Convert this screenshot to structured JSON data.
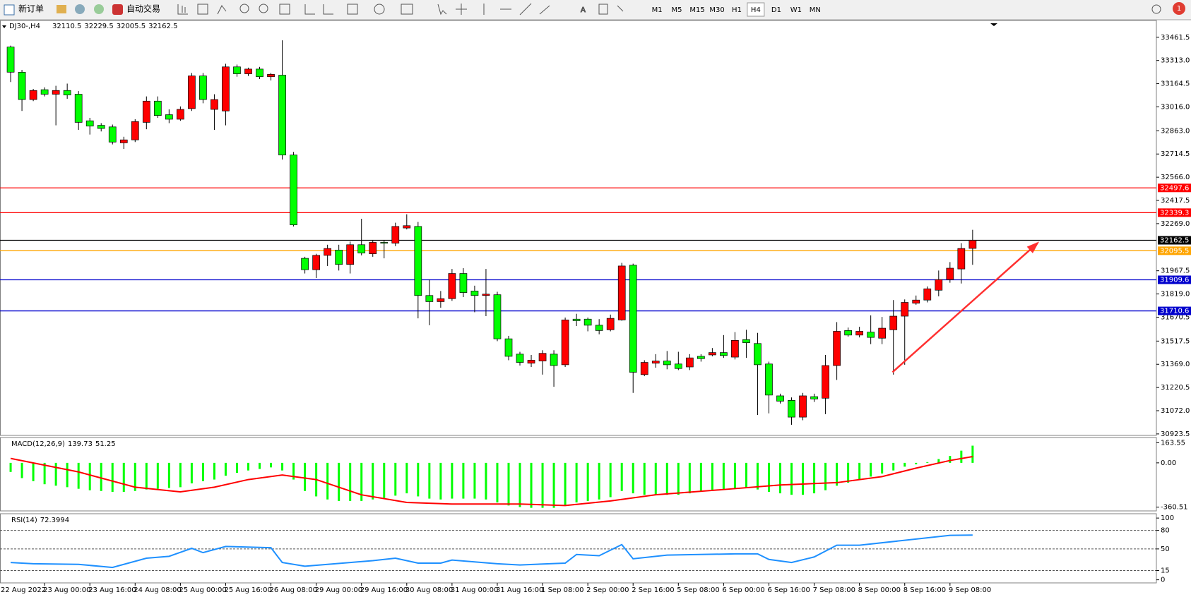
{
  "toolbar": {
    "new_order": "新订单",
    "auto_trading": "自动交易",
    "timeframes": [
      "M1",
      "M5",
      "M15",
      "M30",
      "H1",
      "H4",
      "D1",
      "W1",
      "MN"
    ],
    "active_timeframe": "H4",
    "notifications": "1"
  },
  "chart_data": [
    {
      "type": "candlestick",
      "symbol": "DJ30-,H4",
      "start_label": "22 Aug 2022",
      "categories": [
        null,
        null,
        null,
        "23 Aug 00:00",
        null,
        null,
        null,
        "23 Aug 16:00",
        null,
        null,
        null,
        "24 Aug 08:00",
        null,
        null,
        null,
        "25 Aug 00:00",
        null,
        null,
        null,
        "25 Aug 16:00",
        null,
        null,
        null,
        "26 Aug 08:00",
        null,
        null,
        null,
        "29 Aug 00:00",
        null,
        null,
        null,
        "29 Aug 16:00",
        null,
        null,
        null,
        "30 Aug 08:00",
        null,
        null,
        null,
        "31 Aug 00:00",
        null,
        null,
        null,
        "31 Aug 16:00",
        null,
        null,
        null,
        "1 Sep 08:00",
        null,
        null,
        null,
        "2 Sep 00:00",
        null,
        null,
        null,
        "2 Sep 16:00",
        null,
        null,
        null,
        "5 Sep 08:00",
        null,
        null,
        null,
        "6 Sep 00:00",
        null,
        null,
        null,
        "6 Sep 16:00",
        null,
        null,
        null,
        "7 Sep 08:00",
        null,
        null,
        null,
        "8 Sep 00:00",
        null,
        null,
        null,
        "8 Sep 16:00",
        null,
        null,
        null,
        "9 Sep 08:00",
        null,
        null
      ],
      "ohlc": [
        [
          33399,
          33408,
          33175,
          33238
        ],
        [
          33238,
          33253,
          32990,
          33063
        ],
        [
          33063,
          33131,
          33053,
          33121
        ],
        [
          33126,
          33141,
          33083,
          33097
        ],
        [
          33097,
          33151,
          32898,
          33121
        ],
        [
          33121,
          33165,
          33068,
          33092
        ],
        [
          33097,
          33117,
          32869,
          32917
        ],
        [
          32927,
          32946,
          32839,
          32893
        ],
        [
          32898,
          32912,
          32859,
          32878
        ],
        [
          32888,
          32903,
          32776,
          32791
        ],
        [
          32786,
          32825,
          32747,
          32805
        ],
        [
          32805,
          32937,
          32791,
          32922
        ],
        [
          32917,
          33083,
          32873,
          33053
        ],
        [
          33053,
          33083,
          32946,
          32961
        ],
        [
          32966,
          33000,
          32912,
          32937
        ],
        [
          32937,
          33019,
          32927,
          33000
        ],
        [
          33005,
          33233,
          32990,
          33214
        ],
        [
          33214,
          33233,
          33039,
          33063
        ],
        [
          33000,
          33097,
          32869,
          33063
        ],
        [
          32990,
          33292,
          32898,
          33272
        ],
        [
          33272,
          33287,
          33209,
          33228
        ],
        [
          33228,
          33267,
          33214,
          33258
        ],
        [
          33258,
          33272,
          33194,
          33209
        ],
        [
          33209,
          33233,
          33185,
          33224
        ],
        [
          33219,
          33442,
          32679,
          32708
        ],
        [
          32708,
          32728,
          32251,
          32261
        ],
        [
          32047,
          32057,
          31950,
          31974
        ],
        [
          31974,
          32076,
          31921,
          32066
        ],
        [
          32066,
          32134,
          31998,
          32110
        ],
        [
          32100,
          32134,
          31969,
          32008
        ],
        [
          32008,
          32154,
          31950,
          32134
        ],
        [
          32134,
          32300,
          32066,
          32081
        ],
        [
          32076,
          32164,
          32057,
          32149
        ],
        [
          32149,
          32164,
          32047,
          32144
        ],
        [
          32144,
          32275,
          32125,
          32251
        ],
        [
          32241,
          32329,
          32232,
          32256
        ],
        [
          32251,
          32280,
          31663,
          31809
        ],
        [
          31809,
          31911,
          31619,
          31770
        ],
        [
          31770,
          31838,
          31731,
          31789
        ],
        [
          31789,
          31979,
          31775,
          31950
        ],
        [
          31950,
          31984,
          31799,
          31828
        ],
        [
          31838,
          31872,
          31702,
          31809
        ],
        [
          31809,
          31979,
          31677,
          31818
        ],
        [
          31814,
          31833,
          31517,
          31532
        ],
        [
          31532,
          31551,
          31395,
          31420
        ],
        [
          31434,
          31449,
          31361,
          31381
        ],
        [
          31376,
          31429,
          31352,
          31395
        ],
        [
          31390,
          31459,
          31303,
          31439
        ],
        [
          31434,
          31459,
          31225,
          31361
        ],
        [
          31366,
          31668,
          31352,
          31653
        ],
        [
          31658,
          31692,
          31614,
          31648
        ],
        [
          31658,
          31668,
          31580,
          31619
        ],
        [
          31619,
          31658,
          31561,
          31585
        ],
        [
          31590,
          31687,
          31580,
          31663
        ],
        [
          31653,
          32018,
          31648,
          31998
        ],
        [
          32003,
          32013,
          31186,
          31318
        ],
        [
          31303,
          31395,
          31293,
          31381
        ],
        [
          31376,
          31434,
          31347,
          31390
        ],
        [
          31390,
          31454,
          31337,
          31366
        ],
        [
          31371,
          31449,
          31332,
          31342
        ],
        [
          31352,
          31434,
          31332,
          31410
        ],
        [
          31420,
          31434,
          31386,
          31405
        ],
        [
          31429,
          31473,
          31420,
          31444
        ],
        [
          31444,
          31556,
          31410,
          31425
        ],
        [
          31415,
          31575,
          31400,
          31522
        ],
        [
          31527,
          31590,
          31410,
          31507
        ],
        [
          31502,
          31570,
          31045,
          31366
        ],
        [
          31371,
          31386,
          31055,
          31172
        ],
        [
          31167,
          31181,
          31118,
          31133
        ],
        [
          31138,
          31157,
          30982,
          31031
        ],
        [
          31031,
          31186,
          31011,
          31167
        ],
        [
          31162,
          31181,
          31128,
          31147
        ],
        [
          31152,
          31429,
          31050,
          31361
        ],
        [
          31361,
          31639,
          31269,
          31580
        ],
        [
          31585,
          31604,
          31546,
          31556
        ],
        [
          31556,
          31609,
          31541,
          31580
        ],
        [
          31575,
          31682,
          31498,
          31541
        ],
        [
          31536,
          31672,
          31498,
          31600
        ],
        [
          31590,
          31780,
          31303,
          31677
        ],
        [
          31677,
          31784,
          31366,
          31765
        ],
        [
          31760,
          31809,
          31750,
          31780
        ],
        [
          31780,
          31867,
          31765,
          31852
        ],
        [
          31843,
          31969,
          31804,
          31911
        ],
        [
          31911,
          32023,
          31891,
          31984
        ],
        [
          31979,
          32144,
          31886,
          32110
        ],
        [
          32110.5,
          32229.5,
          32005.5,
          32162.5
        ]
      ],
      "up_color": "#ff0000",
      "down_color": "#00ff00",
      "ylim": [
        30914,
        33569
      ],
      "yticks": [
        33461.5,
        {
          "value": 33313,
          "label": "33313.0"
        },
        33164.5,
        {
          "value": 33016,
          "label": "33016.0"
        },
        {
          "value": 32863,
          "label": "32863.0"
        },
        32714.5,
        {
          "value": 32566,
          "label": "32566.0"
        },
        32417.5,
        {
          "value": 32269,
          "label": "32269.0"
        },
        31967.5,
        {
          "value": 31819,
          "label": "31819.0"
        },
        31670.5,
        31517.5,
        {
          "value": 31369,
          "label": "31369.0"
        },
        31220.5,
        {
          "value": 31072,
          "label": "31072.0"
        },
        30923.5
      ],
      "levels": [
        {
          "value": 32497.6,
          "color": "#ff0000"
        },
        {
          "value": 32339.3,
          "color": "#ff0000"
        },
        {
          "value": 32162.5,
          "color": "#000000"
        },
        {
          "value": 32095.5,
          "color": "#ffa500"
        },
        {
          "value": 31909.6,
          "color": "#0000cd"
        },
        {
          "value": 31710.6,
          "color": "#0000cd"
        }
      ]
    },
    {
      "type": "macd",
      "title": "MACD(12,26,9)",
      "histogram": {
        "color": "#00ff00",
        "values": [
          -74,
          -124,
          -149,
          -174,
          -186,
          -198,
          -211,
          -223,
          -229,
          -236,
          -236,
          -229,
          -217,
          -211,
          -205,
          -198,
          -167,
          -149,
          -136,
          -105,
          -81,
          -62,
          -50,
          -37,
          -62,
          -136,
          -229,
          -273,
          -298,
          -310,
          -310,
          -310,
          -298,
          -285,
          -267,
          -248,
          -273,
          -291,
          -298,
          -291,
          -291,
          -291,
          -298,
          -322,
          -347,
          -360,
          -366,
          -366,
          -366,
          -347,
          -322,
          -310,
          -298,
          -279,
          -229,
          -248,
          -260,
          -260,
          -260,
          -260,
          -248,
          -236,
          -223,
          -217,
          -211,
          -205,
          -217,
          -236,
          -248,
          -260,
          -260,
          -248,
          -223,
          -186,
          -161,
          -136,
          -112,
          -87,
          -62,
          -31,
          -12,
          6,
          31,
          56,
          99,
          139.73
        ]
      },
      "signal": {
        "color": "#ff0000",
        "x": [
          0,
          6,
          11,
          15,
          18,
          21,
          24,
          27,
          31,
          35,
          39,
          45,
          49,
          53,
          57,
          63,
          68,
          73,
          77,
          80,
          83,
          85
        ],
        "values": [
          36,
          -74,
          -198,
          -236,
          -198,
          -136,
          -99,
          -136,
          -260,
          -322,
          -335,
          -335,
          -347,
          -310,
          -260,
          -217,
          -180,
          -161,
          -112,
          -43,
          19,
          51.25
        ]
      },
      "ylim": [
        -391,
        206
      ],
      "yticks": [
        163.55,
        {
          "value": 0,
          "label": "0.00"
        },
        -360.51
      ]
    },
    {
      "type": "line",
      "title": "RSI(14)",
      "color": "#1e90ff",
      "x": [
        0,
        2,
        6,
        9,
        12,
        14,
        16,
        17,
        19,
        23,
        24,
        26,
        28,
        30,
        32,
        34,
        36,
        38,
        39,
        43,
        45,
        49,
        50,
        52,
        54,
        55,
        58,
        64,
        66,
        67,
        69,
        71,
        73,
        75,
        79,
        83,
        85
      ],
      "values": [
        28,
        26,
        25,
        20,
        35,
        38,
        51,
        44,
        54,
        52,
        28,
        22,
        25,
        28,
        31,
        35,
        27,
        27,
        32,
        26,
        24,
        27,
        41,
        39,
        57,
        34,
        40,
        42,
        42,
        33,
        28,
        37,
        56,
        56,
        64,
        72,
        72.3994
      ],
      "ylim": [
        -5,
        107
      ],
      "yticks": [
        100,
        80,
        50,
        15,
        0
      ],
      "levels": [
        80,
        50,
        15
      ]
    }
  ]
}
